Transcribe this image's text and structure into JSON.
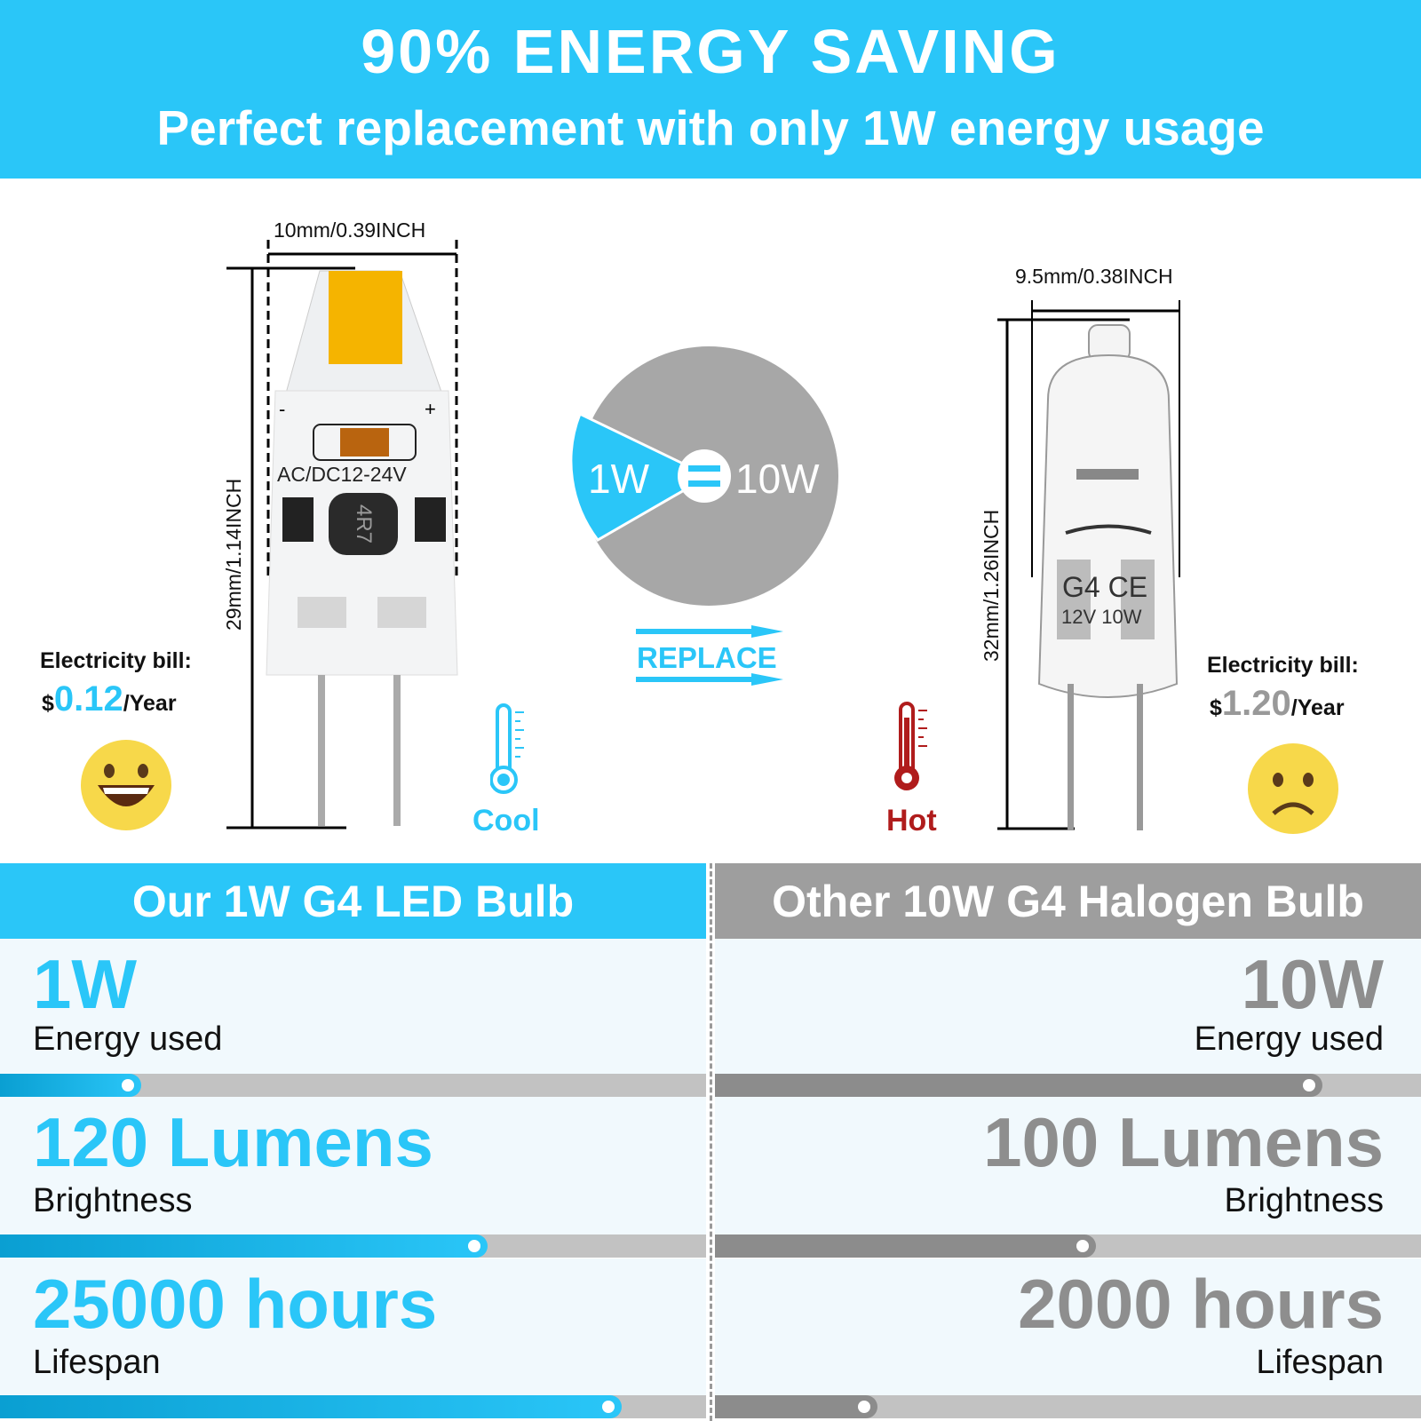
{
  "header": {
    "title": "90% ENERGY SAVING",
    "subtitle": "Perfect replacement with only 1W energy usage"
  },
  "led": {
    "width_dim": "10mm/0.39INCH",
    "height_dim": "29mm/1.14INCH",
    "voltage_print": "AC/DC12-24V",
    "minus": "-",
    "plus": "+",
    "inductor": "4R7",
    "bill_label": "Electricity bill:",
    "bill_currency": "$",
    "bill_value": "0.12",
    "bill_unit": "/Year",
    "temp_label": "Cool",
    "face": "happy"
  },
  "halogen": {
    "width_dim": "9.5mm/0.38INCH",
    "height_dim": "32mm/1.26INCH",
    "print1": "G4 CE",
    "print2": "12V 10W",
    "bill_label": "Electricity bill:",
    "bill_currency": "$",
    "bill_value": "1.20",
    "bill_unit": "/Year",
    "temp_label": "Hot",
    "face": "sad"
  },
  "center": {
    "left_value": "1W",
    "right_value": "10W",
    "equals": "=",
    "replace_label": "REPLACE"
  },
  "comparison": {
    "left": {
      "title": "Our 1W G4 LED Bulb",
      "rows": [
        {
          "value": "1W",
          "label": "Energy used",
          "level": 0.2
        },
        {
          "value": "120 Lumens",
          "label": "Brightness",
          "level": 0.69
        },
        {
          "value": "25000 hours",
          "label": "Lifespan",
          "level": 0.88
        }
      ]
    },
    "right": {
      "title": "Other 10W G4 Halogen Bulb",
      "rows": [
        {
          "value": "10W",
          "label": "Energy used",
          "level": 0.86
        },
        {
          "value": "100 Lumens",
          "label": "Brightness",
          "level": 0.54
        },
        {
          "value": "2000 hours",
          "label": "Lifespan",
          "level": 0.23
        }
      ]
    }
  },
  "colors": {
    "accent": "#2ac6f8",
    "gray": "#9a9a9a",
    "hot": "#b01c1c",
    "chip": "#f5b400"
  }
}
